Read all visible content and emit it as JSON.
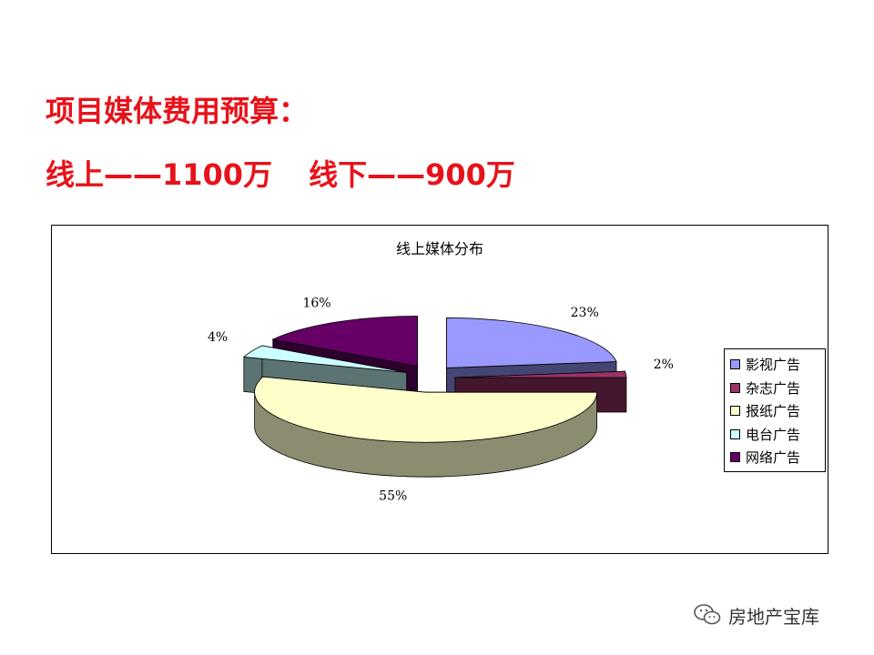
{
  "heading": {
    "line1": "项目媒体费用预算：",
    "line2_part1": "线上——1100万",
    "line2_part2": "线下——900万"
  },
  "chart_data": {
    "type": "pie",
    "title": "线上媒体分布",
    "exploded": true,
    "three_d": true,
    "legend_position": "right",
    "slices": [
      {
        "name": "影视广告",
        "value": 23,
        "label": "23%",
        "color": "#9999ff"
      },
      {
        "name": "杂志广告",
        "value": 2,
        "label": "2%",
        "color": "#993366"
      },
      {
        "name": "报纸广告",
        "value": 55,
        "label": "55%",
        "color": "#ffffcc"
      },
      {
        "name": "电台广告",
        "value": 4,
        "label": "4%",
        "color": "#ccffff"
      },
      {
        "name": "网络广告",
        "value": 16,
        "label": "16%",
        "color": "#660066"
      }
    ]
  },
  "watermark": {
    "text": "房地产宝库",
    "icon": "wechat-icon"
  }
}
